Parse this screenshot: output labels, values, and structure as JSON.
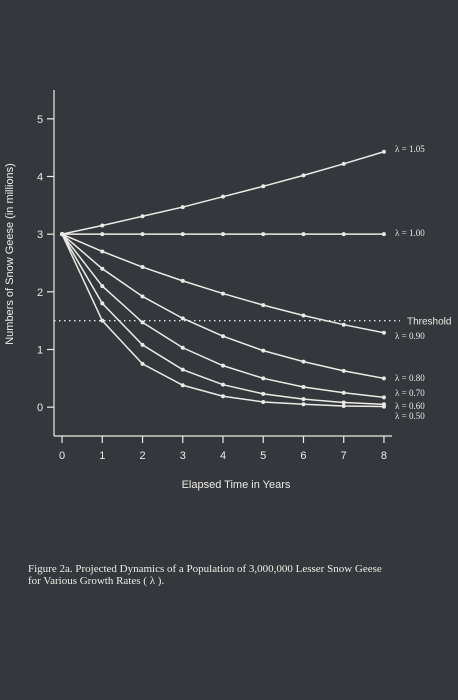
{
  "chart_data": {
    "type": "line",
    "ylabel": "Numbers of Snow Geese (in millions)",
    "xlabel": "Elapsed Time in Years",
    "x": [
      0,
      1,
      2,
      3,
      4,
      5,
      6,
      7,
      8
    ],
    "xlim": [
      -0.2,
      8.2
    ],
    "ylim": [
      -0.5,
      5.5
    ],
    "xticks": [
      "0",
      "1",
      "2",
      "3",
      "4",
      "5",
      "6",
      "7",
      "8"
    ],
    "yticks": [
      "0",
      "1",
      "2",
      "3",
      "4",
      "5"
    ],
    "grid": false,
    "threshold": {
      "label": "Threshold",
      "value": 1.5
    },
    "series": [
      {
        "name": "λ = 1.05",
        "values": [
          3.0,
          3.15,
          3.31,
          3.47,
          3.65,
          3.83,
          4.02,
          4.22,
          4.43
        ]
      },
      {
        "name": "λ = 1.00",
        "values": [
          3.0,
          3.0,
          3.0,
          3.0,
          3.0,
          3.0,
          3.0,
          3.0,
          3.0
        ]
      },
      {
        "name": "λ = 0.90",
        "values": [
          3.0,
          2.7,
          2.43,
          2.19,
          1.97,
          1.77,
          1.59,
          1.43,
          1.29
        ]
      },
      {
        "name": "λ = 0.80",
        "values": [
          3.0,
          2.4,
          1.92,
          1.54,
          1.23,
          0.98,
          0.79,
          0.63,
          0.5
        ]
      },
      {
        "name": "λ = 0.70",
        "values": [
          3.0,
          2.1,
          1.47,
          1.03,
          0.72,
          0.5,
          0.35,
          0.25,
          0.17
        ]
      },
      {
        "name": "λ = 0.60",
        "values": [
          3.0,
          1.8,
          1.08,
          0.65,
          0.39,
          0.23,
          0.14,
          0.08,
          0.05
        ]
      },
      {
        "name": "λ = 0.50",
        "values": [
          3.0,
          1.5,
          0.75,
          0.38,
          0.19,
          0.09,
          0.05,
          0.02,
          0.01
        ]
      }
    ],
    "colors": {
      "background": "#34383d",
      "ink": "#eceae4"
    }
  },
  "caption": {
    "line1": "Figure 2a.  Projected Dynamics of a Population of 3,000,000 Lesser Snow Geese",
    "line2": "for Various Growth Rates ( λ )."
  }
}
